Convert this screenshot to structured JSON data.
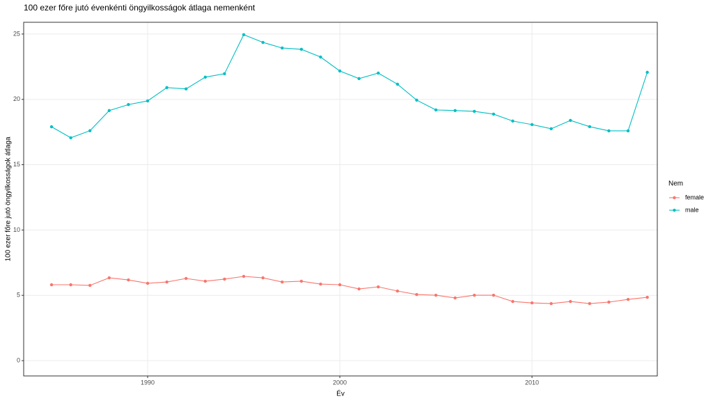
{
  "chart_data": {
    "type": "line",
    "title": "100 ezer főre jutó évenkénti öngyilkosságok átlaga nemenként",
    "x_label": "Év",
    "y_label": "100 ezer főre jutó öngyilkosságok átlaga",
    "legend_title": "Nem",
    "x": [
      1985,
      1986,
      1987,
      1988,
      1989,
      1990,
      1991,
      1992,
      1993,
      1994,
      1995,
      1996,
      1997,
      1998,
      1999,
      2000,
      2001,
      2002,
      2003,
      2004,
      2005,
      2006,
      2007,
      2008,
      2009,
      2010,
      2011,
      2012,
      2013,
      2014,
      2015,
      2016
    ],
    "series": [
      {
        "name": "female",
        "color": "#f8766d",
        "values": [
          5.81,
          5.81,
          5.76,
          6.34,
          6.18,
          5.92,
          6.02,
          6.29,
          6.08,
          6.24,
          6.45,
          6.34,
          6.02,
          6.08,
          5.86,
          5.81,
          5.49,
          5.65,
          5.33,
          5.06,
          5.01,
          4.8,
          5.01,
          5.01,
          4.53,
          4.42,
          4.37,
          4.53,
          4.37,
          4.48,
          4.69,
          4.85
        ]
      },
      {
        "name": "male",
        "color": "#00bfc4",
        "values": [
          17.9,
          17.06,
          17.6,
          19.14,
          19.6,
          19.88,
          20.9,
          20.8,
          21.7,
          21.96,
          24.95,
          24.36,
          23.93,
          23.83,
          23.24,
          22.17,
          21.59,
          22.01,
          21.16,
          19.94,
          19.19,
          19.14,
          19.08,
          18.87,
          18.34,
          18.07,
          17.75,
          18.39,
          17.91,
          17.59,
          17.59,
          22.07
        ]
      }
    ],
    "xlim": [
      1983.55,
      2016.52
    ],
    "ylim": [
      -1.17,
      25.9
    ],
    "xticks": [
      1990,
      2000,
      2010
    ],
    "yticks": [
      0,
      5,
      10,
      15,
      20,
      25
    ],
    "grid": true,
    "legend_position": "right"
  }
}
